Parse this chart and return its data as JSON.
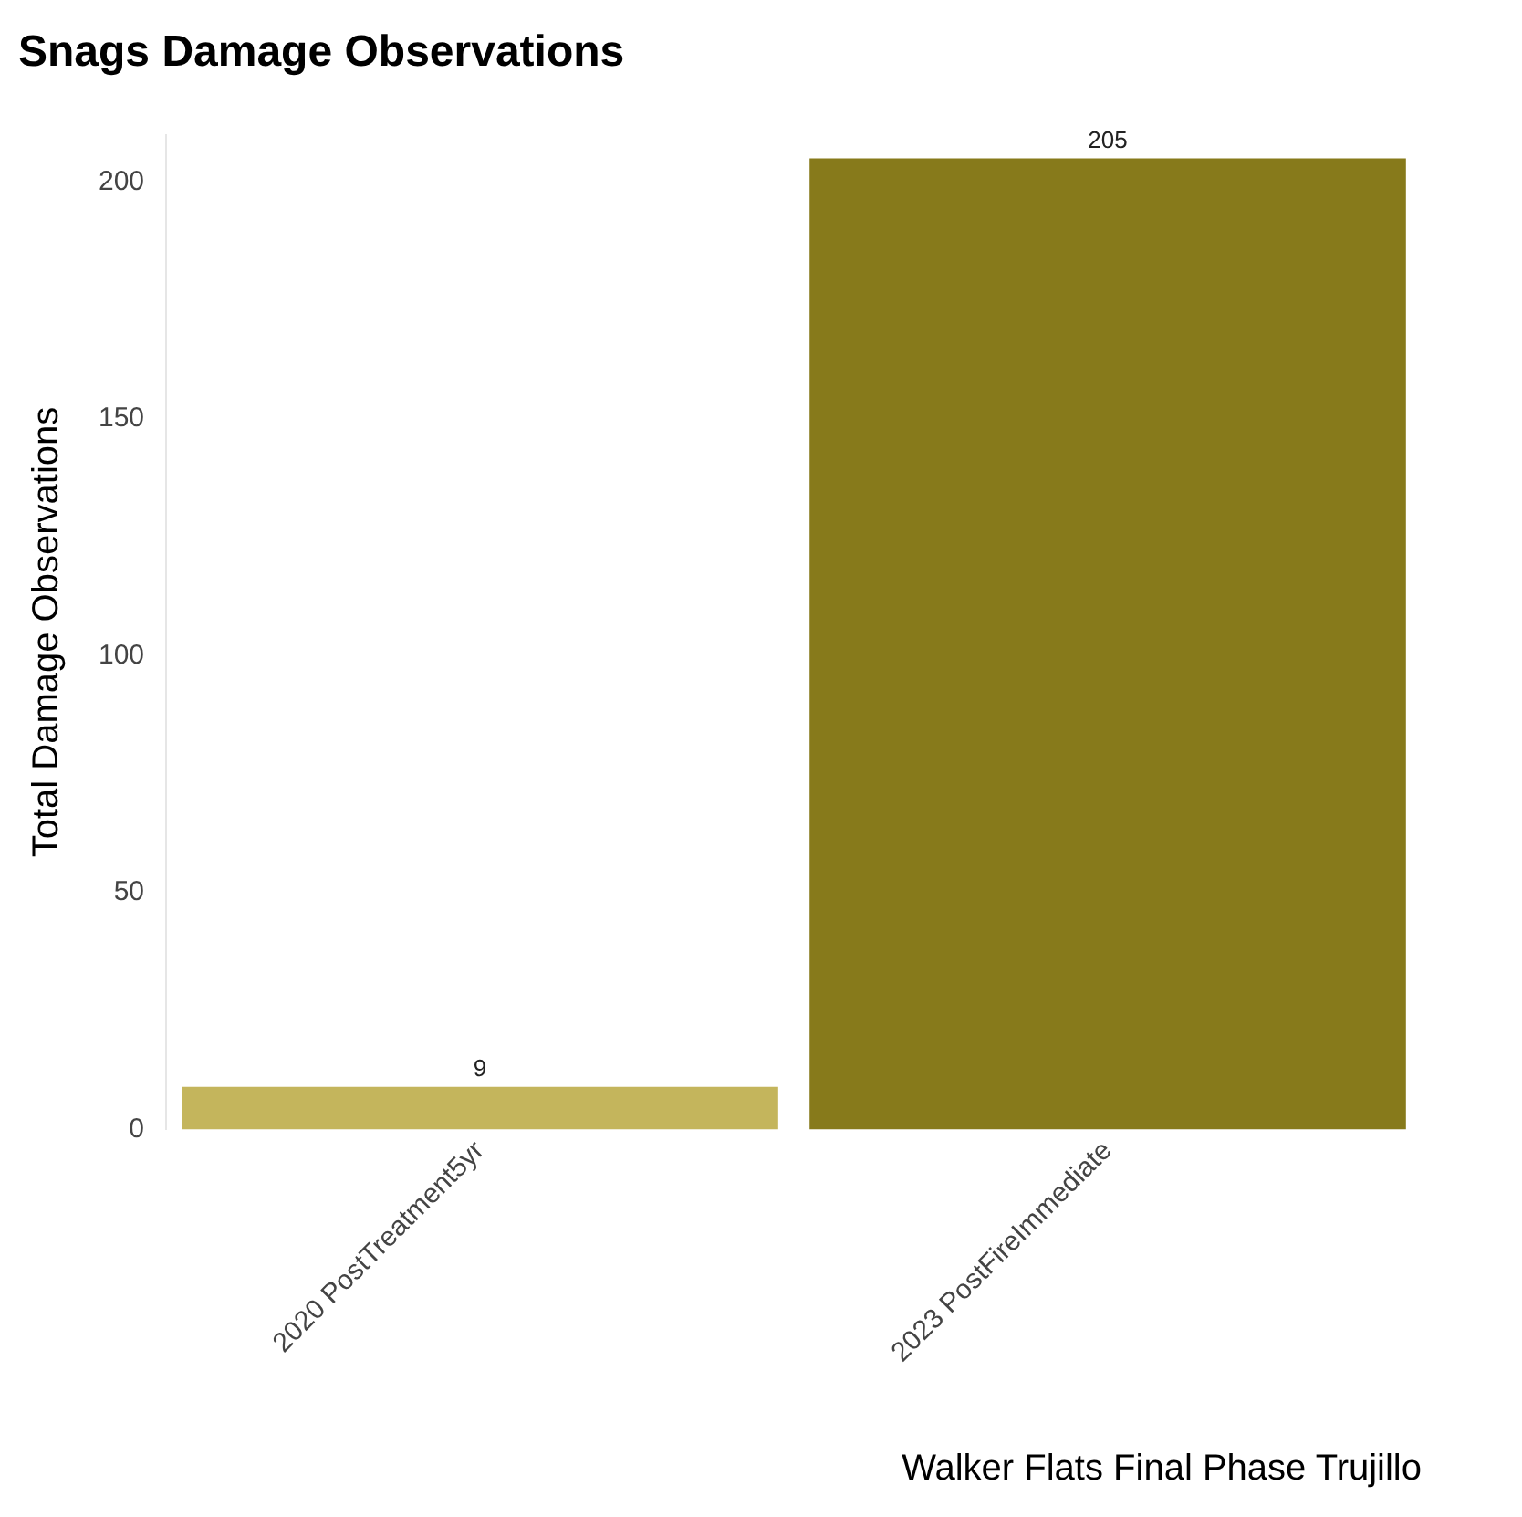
{
  "chart_data": {
    "type": "bar",
    "title": "Snags Damage Observations",
    "xlabel": "Walker Flats Final Phase Trujillo",
    "ylabel": "Total Damage Observations",
    "categories": [
      "2020 PostTreatment5yr",
      "2023 PostFireImmediate"
    ],
    "values": [
      9,
      205
    ],
    "colors": [
      "#c4b55c",
      "#877a1b"
    ],
    "ylim": [
      0,
      210
    ],
    "yticks": [
      0,
      50,
      100,
      150,
      200
    ],
    "data_labels": true,
    "grid": false,
    "legend": false
  }
}
